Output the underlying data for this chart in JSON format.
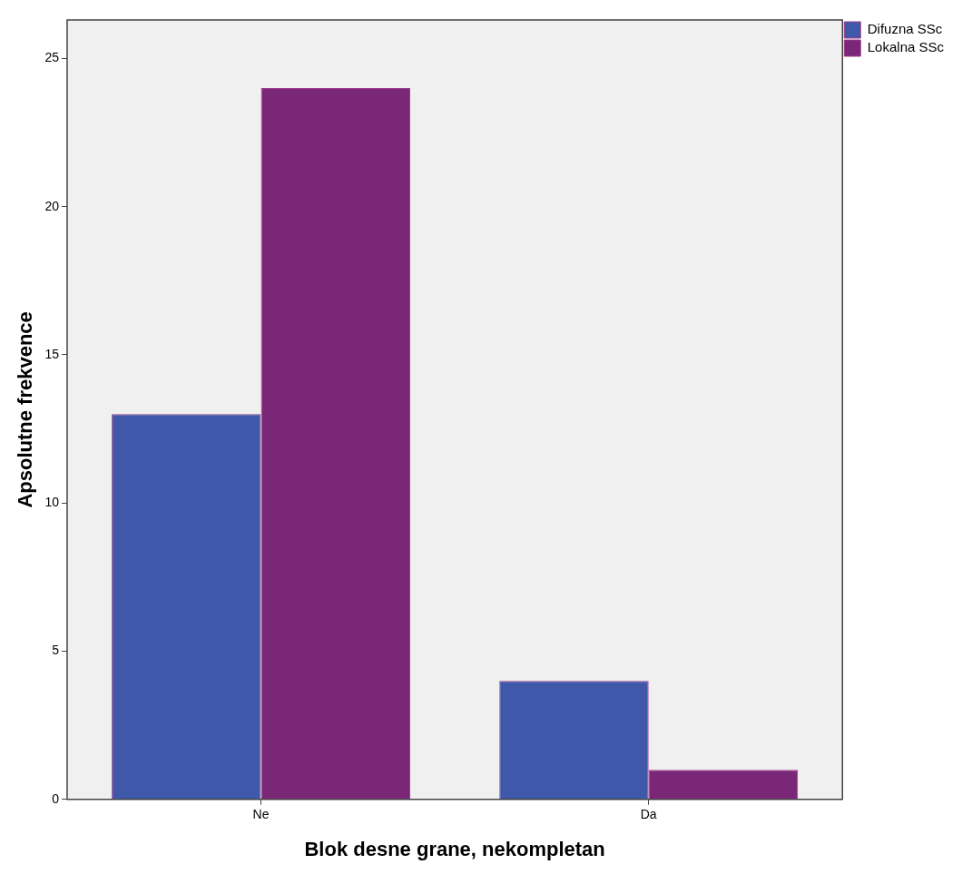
{
  "chart_data": {
    "type": "bar",
    "xlabel": "Blok desne grane, nekompletan",
    "ylabel": "Apsolutne frekvence",
    "categories": [
      "Ne",
      "Da"
    ],
    "series": [
      {
        "name": "Difuzna SSc",
        "color": "#3f58a9",
        "values": [
          13,
          4
        ]
      },
      {
        "name": "Lokalna SSc",
        "color": "#7b2777",
        "values": [
          24,
          1
        ]
      }
    ],
    "ylim": [
      0,
      26.3
    ],
    "yticks": [
      0,
      5,
      10,
      15,
      20,
      25
    ],
    "grid": false,
    "legend": "top right"
  }
}
